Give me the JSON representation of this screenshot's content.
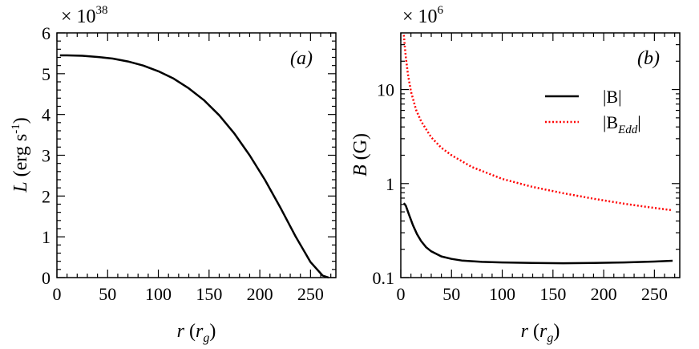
{
  "chart_data": [
    {
      "type": "line",
      "panel_tag": "(a)",
      "xlabel_main": "r",
      "xlabel_unit": "r",
      "xlabel_unit_sub": "g",
      "ylabel_main": "L",
      "ylabel_unit": "erg s",
      "ylabel_unit_sup": "-1",
      "multiplier_base": "× 10",
      "multiplier_exp": "38",
      "xlim": [
        0,
        275
      ],
      "ylim": [
        0,
        6
      ],
      "xticks": [
        "0",
        "50",
        "100",
        "150",
        "200",
        "250"
      ],
      "xtick_values": [
        0,
        50,
        100,
        150,
        200,
        250
      ],
      "yticks": [
        "0",
        "1",
        "2",
        "3",
        "4",
        "5",
        "6"
      ],
      "ytick_values": [
        0,
        1,
        2,
        3,
        4,
        5,
        6
      ],
      "series": [
        {
          "color": "#000000",
          "style": "solid",
          "x": [
            3,
            10,
            25,
            40,
            55,
            70,
            85,
            100,
            115,
            130,
            145,
            160,
            175,
            190,
            205,
            220,
            235,
            250,
            262,
            268
          ],
          "y": [
            5.45,
            5.45,
            5.44,
            5.41,
            5.37,
            5.3,
            5.2,
            5.06,
            4.88,
            4.64,
            4.35,
            3.98,
            3.53,
            3.0,
            2.4,
            1.73,
            1.02,
            0.38,
            0.05,
            0.0
          ]
        }
      ]
    },
    {
      "type": "line",
      "panel_tag": "(b)",
      "xlabel_main": "r",
      "xlabel_unit": "r",
      "xlabel_unit_sub": "g",
      "ylabel_main": "B",
      "ylabel_unit": "G",
      "multiplier_base": "× 10",
      "multiplier_exp": "6",
      "yscale": "log",
      "xlim": [
        0,
        275
      ],
      "ylim": [
        0.1,
        40
      ],
      "xticks": [
        "0",
        "50",
        "100",
        "150",
        "200",
        "250"
      ],
      "xtick_values": [
        0,
        50,
        100,
        150,
        200,
        250
      ],
      "yticks": [
        "0.1",
        "1",
        "10"
      ],
      "ytick_values": [
        0.1,
        1,
        10
      ],
      "legend_position": "top-right",
      "series": [
        {
          "name": "|B|",
          "color": "#000000",
          "style": "solid",
          "x": [
            3,
            5,
            8,
            12,
            16,
            20,
            25,
            30,
            40,
            50,
            60,
            80,
            100,
            130,
            160,
            190,
            220,
            250,
            268
          ],
          "y": [
            0.62,
            0.58,
            0.47,
            0.36,
            0.29,
            0.245,
            0.21,
            0.19,
            0.168,
            0.158,
            0.152,
            0.147,
            0.145,
            0.143,
            0.142,
            0.143,
            0.145,
            0.148,
            0.151
          ]
        },
        {
          "name": "|B_Edd|",
          "name_main": "|B",
          "name_sub": "Edd",
          "name_end": "|",
          "color": "#ff0000",
          "style": "dotted",
          "x": [
            3,
            4,
            5,
            7,
            10,
            15,
            20,
            30,
            40,
            50,
            70,
            100,
            130,
            160,
            190,
            220,
            250,
            268
          ],
          "y": [
            38,
            28,
            22,
            14.5,
            9.5,
            6.1,
            4.6,
            3.1,
            2.4,
            2.0,
            1.5,
            1.12,
            0.92,
            0.79,
            0.69,
            0.61,
            0.55,
            0.52
          ]
        }
      ]
    }
  ]
}
